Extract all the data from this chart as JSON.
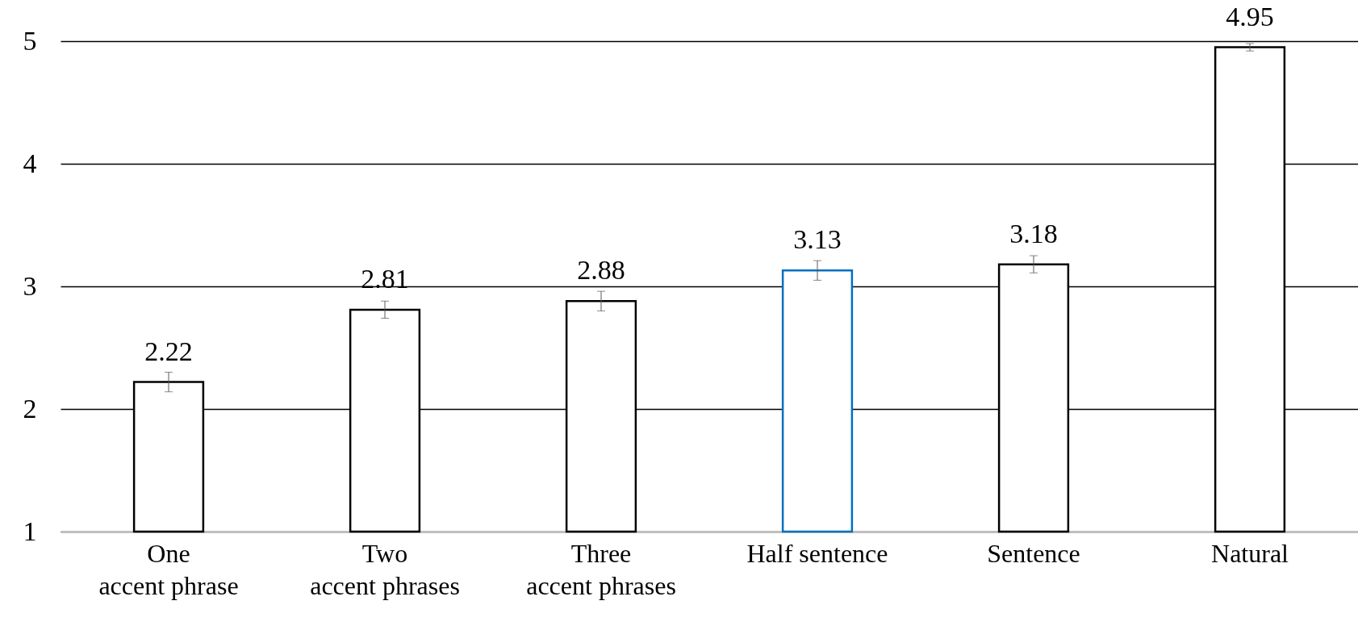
{
  "chart_data": {
    "type": "bar",
    "categories": [
      "One\naccent phrase",
      "Two\naccent phrases",
      "Three\naccent phrases",
      "Half sentence",
      "Sentence",
      "Natural"
    ],
    "values": [
      2.22,
      2.81,
      2.88,
      3.13,
      3.18,
      4.95
    ],
    "errors": [
      0.08,
      0.07,
      0.08,
      0.08,
      0.07,
      0.03
    ],
    "colors": [
      "#000000",
      "#000000",
      "#000000",
      "#0070c0",
      "#000000",
      "#000000"
    ],
    "ylim": [
      1,
      5
    ],
    "yticks": [
      1,
      2,
      3,
      4,
      5
    ],
    "grid": "y",
    "data_labels": true
  }
}
